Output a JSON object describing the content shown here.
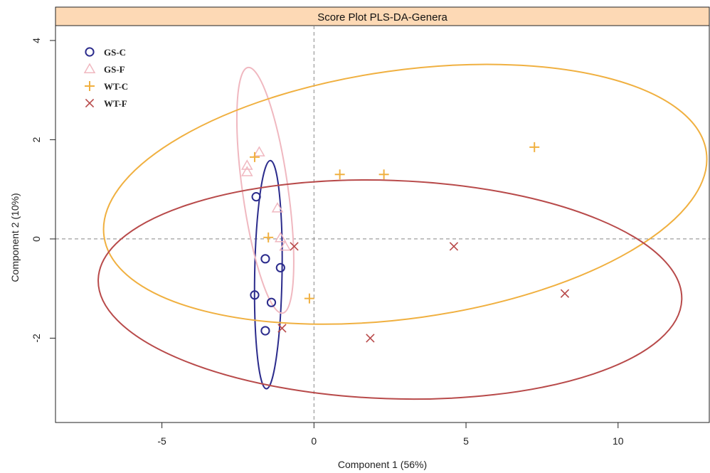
{
  "chart_data": {
    "type": "scatter",
    "title": "Score Plot PLS-DA-Genera",
    "xlabel": "Component 1 (56%)",
    "ylabel": "Component 2 (10%)",
    "xlim": [
      -8.5,
      13
    ],
    "ylim": [
      -3.7,
      4.3
    ],
    "xticks": [
      -5,
      0,
      5,
      10
    ],
    "yticks": [
      -2,
      0,
      2,
      4
    ],
    "reference_lines": {
      "x": 0,
      "y": 0
    },
    "legend_position": "top-left",
    "colors": {
      "title_strip": "#fdd9b5",
      "gs_c": "#2b2b8c",
      "gs_f": "#f0b8c0",
      "wt_c": "#f0b040",
      "wt_f": "#b84a4a",
      "ref_line": "#888888"
    },
    "series": [
      {
        "name": "GS-C",
        "marker": "circle",
        "color_key": "gs_c",
        "points": [
          [
            -1.9,
            0.85
          ],
          [
            -1.6,
            -0.4
          ],
          [
            -1.1,
            -0.58
          ],
          [
            -1.95,
            -1.13
          ],
          [
            -1.4,
            -1.28
          ],
          [
            -1.6,
            -1.85
          ]
        ],
        "ellipse": {
          "cx": -1.5,
          "cy": -0.72,
          "rx": 0.45,
          "ry": 2.3,
          "angle": -1
        }
      },
      {
        "name": "GS-F",
        "marker": "triangle",
        "color_key": "gs_f",
        "points": [
          [
            -2.2,
            1.48
          ],
          [
            -1.8,
            1.75
          ],
          [
            -2.2,
            1.35
          ],
          [
            -1.2,
            0.62
          ],
          [
            -1.1,
            0.02
          ],
          [
            -0.95,
            -0.15
          ]
        ],
        "ellipse": {
          "cx": -1.6,
          "cy": 0.98,
          "rx": 0.75,
          "ry": 2.5,
          "angle": 8
        }
      },
      {
        "name": "WT-C",
        "marker": "plus",
        "color_key": "wt_c",
        "points": [
          [
            -1.95,
            1.65
          ],
          [
            -1.5,
            0.03
          ],
          [
            -0.15,
            -1.2
          ],
          [
            0.85,
            1.3
          ],
          [
            2.3,
            1.3
          ],
          [
            7.25,
            1.85
          ]
        ],
        "ellipse": {
          "cx": 3.0,
          "cy": 0.9,
          "rx": 10.0,
          "ry": 2.5,
          "angle": 8
        }
      },
      {
        "name": "WT-F",
        "marker": "x",
        "color_key": "wt_f",
        "points": [
          [
            -0.65,
            -0.15
          ],
          [
            -1.05,
            -1.8
          ],
          [
            1.85,
            -2.0
          ],
          [
            4.6,
            -0.15
          ],
          [
            8.25,
            -1.1
          ]
        ],
        "ellipse": {
          "cx": 2.5,
          "cy": -1.02,
          "rx": 9.6,
          "ry": 2.2,
          "angle": -2
        }
      }
    ]
  }
}
